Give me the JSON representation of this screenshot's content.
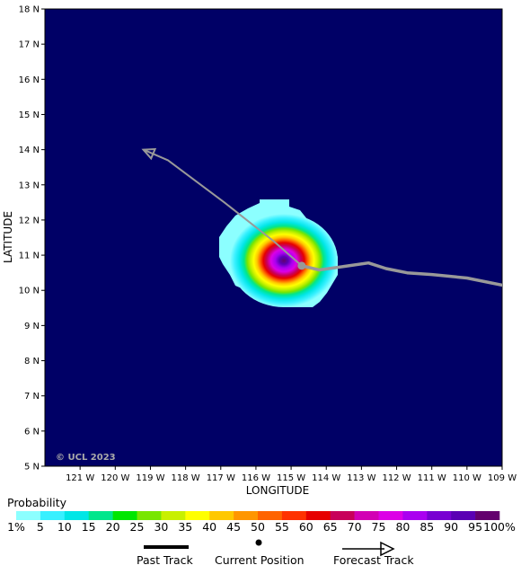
{
  "map": {
    "background_color": "#000066",
    "x_axis_title": "LONGITUDE",
    "y_axis_title": "LATITUDE",
    "watermark": "© UCL 2023",
    "lat_labels": [
      "18 N",
      "17 N",
      "16 N",
      "15 N",
      "14 N",
      "13 N",
      "12 N",
      "11 N",
      "10 N",
      "9 N",
      "8 N",
      "7 N",
      "6 N",
      "5 N"
    ],
    "lon_labels": [
      "121 W",
      "120 W",
      "119 W",
      "118 W",
      "117 W",
      "116 W",
      "115 W",
      "114 W",
      "113 W",
      "112 W",
      "111 W",
      "110 W",
      "109 W"
    ],
    "lat_range": [
      5,
      18
    ],
    "lon_range": [
      -122,
      -109
    ],
    "current_position": {
      "lon": -114.7,
      "lat": 10.7
    },
    "past_track": [
      {
        "lon": -109.0,
        "lat": 10.15
      },
      {
        "lon": -110.0,
        "lat": 10.35
      },
      {
        "lon": -111.0,
        "lat": 10.45
      },
      {
        "lon": -111.7,
        "lat": 10.5
      },
      {
        "lon": -112.3,
        "lat": 10.62
      },
      {
        "lon": -112.8,
        "lat": 10.78
      },
      {
        "lon": -113.5,
        "lat": 10.68
      },
      {
        "lon": -114.2,
        "lat": 10.58
      },
      {
        "lon": -114.7,
        "lat": 10.7
      }
    ],
    "forecast_track": [
      {
        "lon": -114.7,
        "lat": 10.7
      },
      {
        "lon": -115.5,
        "lat": 11.4
      },
      {
        "lon": -116.9,
        "lat": 12.5
      },
      {
        "lon": -118.5,
        "lat": 13.7
      },
      {
        "lon": -119.2,
        "lat": 14.0
      }
    ]
  },
  "legend": {
    "title": "Probability",
    "labels": [
      "1%",
      "5",
      "10",
      "15",
      "20",
      "25",
      "30",
      "35",
      "40",
      "45",
      "50",
      "55",
      "60",
      "65",
      "70",
      "75",
      "80",
      "85",
      "90",
      "95",
      "100%"
    ],
    "colors": [
      "#8cffff",
      "#38f0ff",
      "#00e6e6",
      "#00e68c",
      "#00e600",
      "#78e600",
      "#c8f000",
      "#ffff00",
      "#ffc800",
      "#ff9600",
      "#ff6400",
      "#ff3200",
      "#e60000",
      "#c8005a",
      "#d200b4",
      "#dc00e6",
      "#aa00f0",
      "#7800d2",
      "#5a00b4",
      "#64006e"
    ],
    "track_keys": {
      "past": "Past Track",
      "current": "Current Position",
      "forecast": "Forecast Track"
    }
  }
}
